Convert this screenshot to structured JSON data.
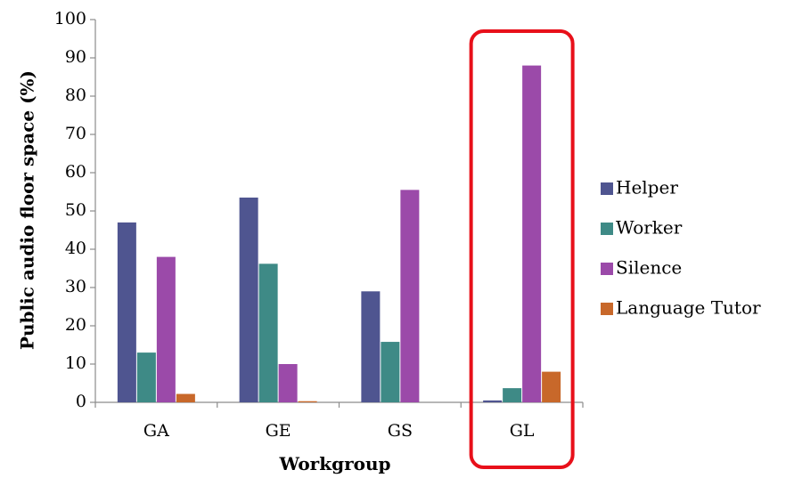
{
  "chart_data": {
    "type": "bar",
    "categories": [
      "GA",
      "GE",
      "GS",
      "GL"
    ],
    "series": [
      {
        "name": "Helper",
        "values": [
          47,
          53.5,
          29,
          0.5
        ],
        "color": "#4f5590"
      },
      {
        "name": "Worker",
        "values": [
          13,
          36.2,
          15.8,
          3.7
        ],
        "color": "#3e8a86"
      },
      {
        "name": "Silence",
        "values": [
          38,
          10,
          55.5,
          88
        ],
        "color": "#9b4aa9"
      },
      {
        "name": "Language Tutor",
        "values": [
          2.2,
          0.3,
          0,
          8
        ],
        "color": "#c8682a"
      }
    ],
    "xlabel": "Workgroup",
    "ylabel": "Public audio floor  space (%)",
    "ylim": [
      0,
      100
    ],
    "yticks": [
      0,
      10,
      20,
      30,
      40,
      50,
      60,
      70,
      80,
      90,
      100
    ],
    "grid": false,
    "legend": "right",
    "highlight": {
      "category": "GL",
      "color": "#e8101a"
    }
  }
}
